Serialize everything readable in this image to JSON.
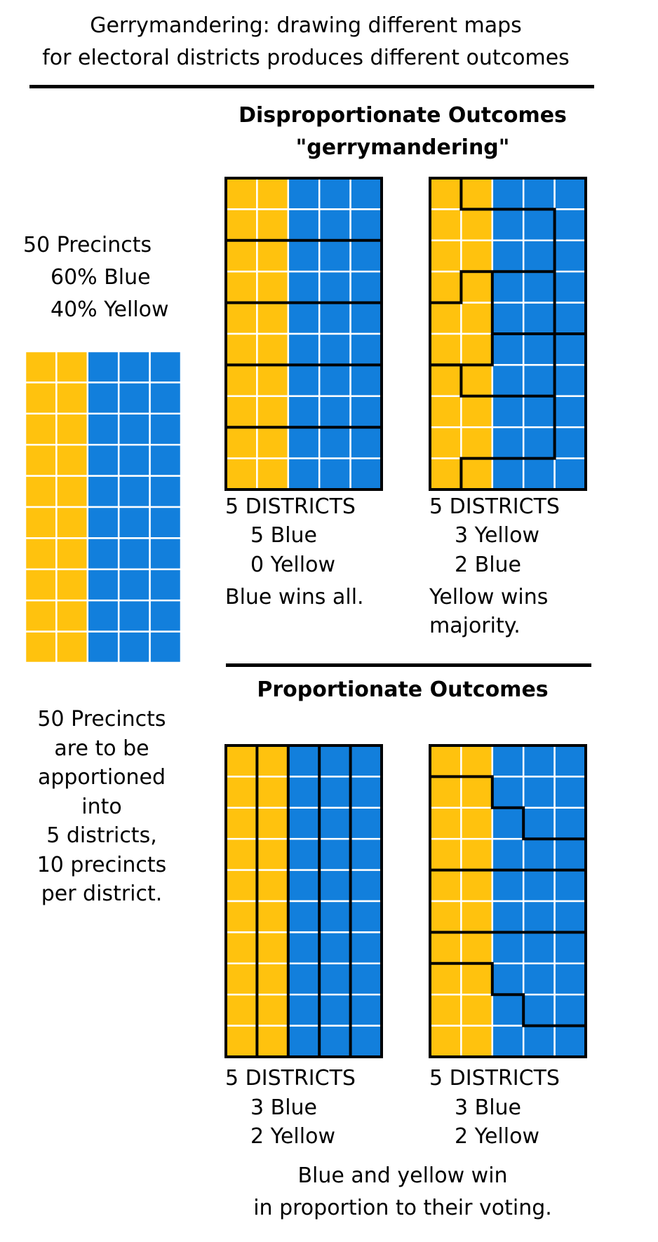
{
  "title": {
    "line1": "Gerrymandering: drawing different maps",
    "line2": "for electoral districts produces different outcomes"
  },
  "colors": {
    "yellow": "#ffc20e",
    "blue": "#127fdc",
    "grid_line": "#ffffff",
    "border": "#000000"
  },
  "intro": {
    "line1": "50 Precincts",
    "line2": "60% Blue",
    "line3": "40% Yellow"
  },
  "note": {
    "lines": [
      "50 Precincts",
      "are to be",
      "apportioned",
      "into",
      "5 districts,",
      "10 precincts",
      "per district."
    ]
  },
  "precinct_grid": {
    "columns": 5,
    "rows": 10,
    "yellow_columns": 2,
    "blue_columns": 3
  },
  "disproportionate": {
    "heading1": "Disproportionate Outcomes",
    "heading2": "\"gerrymandering\"",
    "maps": [
      {
        "header": "5 DISTRICTS",
        "line1": "5 Blue",
        "line2": "0 Yellow",
        "caption1": "Blue wins all.",
        "caption2": ""
      },
      {
        "header": "5 DISTRICTS",
        "line1": "3 Yellow",
        "line2": "2 Blue",
        "caption1": "Yellow wins",
        "caption2": "majority."
      }
    ]
  },
  "proportionate": {
    "heading": "Proportionate Outcomes",
    "maps": [
      {
        "header": "5 DISTRICTS",
        "line1": "3 Blue",
        "line2": "2 Yellow"
      },
      {
        "header": "5 DISTRICTS",
        "line1": "3 Blue",
        "line2": "2 Yellow"
      }
    ],
    "caption1": "Blue and yellow win",
    "caption2": "in proportion to their voting."
  }
}
